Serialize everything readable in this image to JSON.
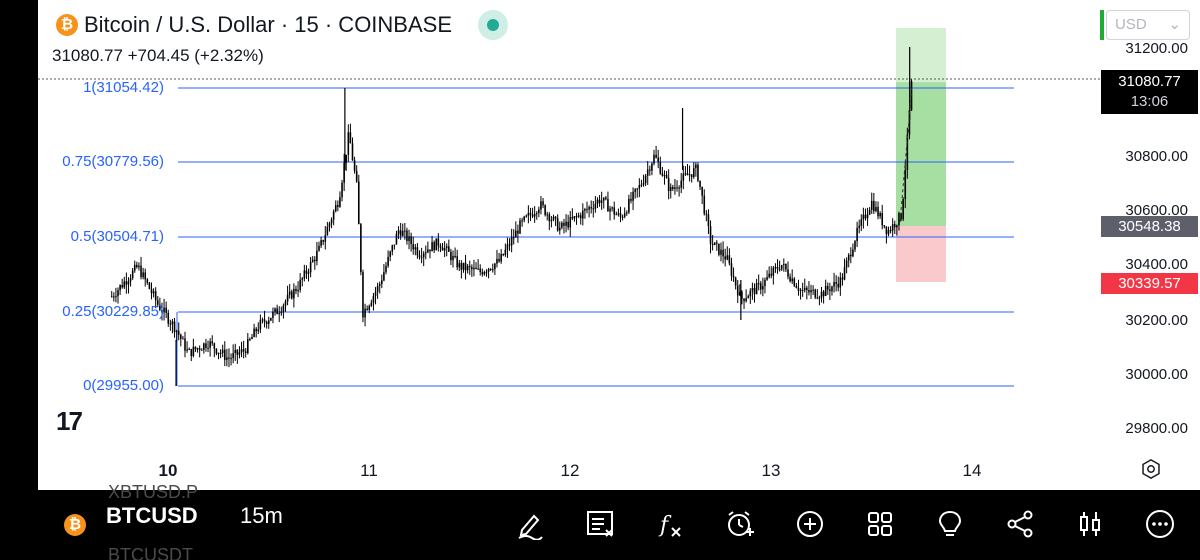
{
  "header": {
    "title": "Bitcoin / U.S. Dollar · 15 · COINBASE",
    "price_line": "31080.77  +704.45 (+2.32%)"
  },
  "currency_selector": {
    "value": "USD"
  },
  "fib_levels": [
    {
      "label": "1(31054.42)",
      "price": 31054.42
    },
    {
      "label": "0.75(30779.56)",
      "price": 30779.56
    },
    {
      "label": "0.5(30504.71)",
      "price": 30504.71
    },
    {
      "label": "0.25(30229.85)",
      "price": 30229.85
    },
    {
      "label": "0(29955.00)",
      "price": 29955.0
    }
  ],
  "badges": {
    "last_price": "31080.77",
    "countdown": "13:06",
    "entry": "30548.38",
    "stop": "30339.57"
  },
  "colors": {
    "fib_line": "#2962ff",
    "candle": "#000000",
    "profit_zone": "#a7dea1",
    "loss_zone": "#f9c9cc",
    "stop_badge": "#f23645",
    "entry_badge": "#5d606b",
    "last_badge": "#000000"
  },
  "chart_data": {
    "type": "candlestick",
    "title": "Bitcoin / U.S. Dollar · 15 · COINBASE",
    "y_ticks": [
      31200,
      30800,
      30600,
      30400,
      30200,
      30000,
      29800
    ],
    "y_tick_labels": [
      "31200.00",
      "30800.00",
      "30600.00",
      "30400.00",
      "30200.00",
      "30000.00",
      "29800.00"
    ],
    "x_ticks": [
      "10",
      "11",
      "12",
      "13",
      "14"
    ],
    "ylim": [
      29700,
      31340
    ],
    "series": [
      {
        "x": [
          9.72,
          9.85,
          9.95,
          10.04,
          10.1,
          10.2,
          10.3,
          10.38,
          10.45,
          10.55,
          10.65,
          10.75,
          10.85,
          10.9,
          10.94,
          10.97,
          11.05,
          11.15,
          11.25,
          11.35,
          11.45,
          11.55,
          11.65,
          11.75,
          11.85,
          11.95,
          12.05,
          12.15,
          12.25,
          12.35,
          12.42,
          12.5,
          12.57,
          12.63,
          12.7,
          12.78,
          12.85,
          12.95,
          13.05,
          13.15,
          13.25,
          13.35,
          13.42,
          13.5,
          13.58,
          13.65,
          13.7
        ],
        "y": [
          30290,
          30400,
          30260,
          30170,
          30080,
          30120,
          30060,
          30090,
          30180,
          30240,
          30330,
          30460,
          30650,
          30890,
          30690,
          30230,
          30330,
          30540,
          30450,
          30490,
          30400,
          30380,
          30420,
          30550,
          30630,
          30540,
          30590,
          30650,
          30580,
          30700,
          30810,
          30680,
          30730,
          30760,
          30490,
          30430,
          30280,
          30330,
          30410,
          30310,
          30300,
          30350,
          30510,
          30640,
          30530,
          30590,
          31080
        ]
      }
    ]
  },
  "bottom_bar": {
    "ticker": "BTCUSD",
    "timeframe": "15m",
    "ghost_top": "XBTUSD.P",
    "ghost_bottom": "BTCUSDT"
  },
  "toolbar_icons": [
    "draw-icon",
    "indicators-list-icon",
    "function-icon",
    "alert-clock-icon",
    "add-icon",
    "layouts-icon",
    "ideas-icon",
    "share-icon",
    "chart-style-icon",
    "more-icon"
  ]
}
